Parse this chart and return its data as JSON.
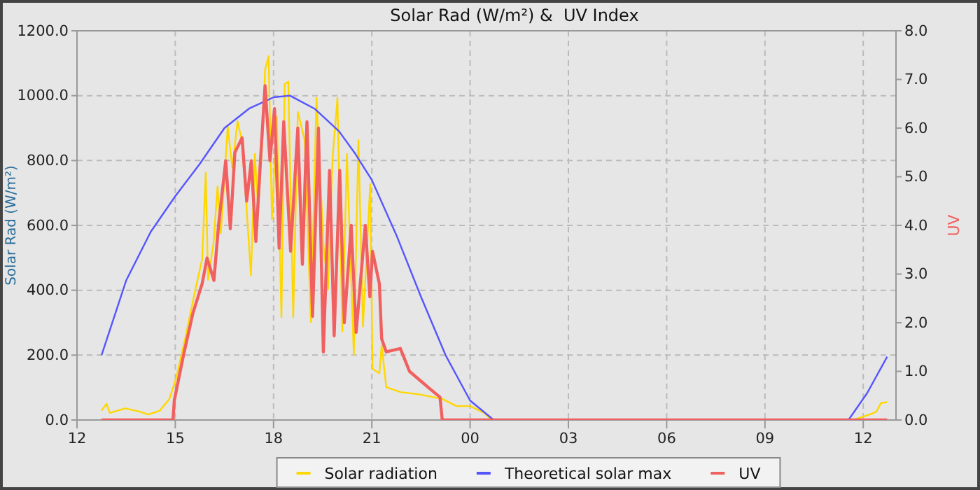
{
  "chart_data": {
    "type": "line",
    "title": "Solar Rad (W/m²) &  UV Index",
    "ylabel": "Solar Rad (W/m²)",
    "y2label": "UV",
    "xlim": [
      12,
      37
    ],
    "xticks": [
      {
        "value": 12,
        "label": "12"
      },
      {
        "value": 15,
        "label": "15"
      },
      {
        "value": 18,
        "label": "18"
      },
      {
        "value": 21,
        "label": "21"
      },
      {
        "value": 24,
        "label": "00"
      },
      {
        "value": 27,
        "label": "03"
      },
      {
        "value": 30,
        "label": "06"
      },
      {
        "value": 33,
        "label": "09"
      },
      {
        "value": 36,
        "label": "12"
      }
    ],
    "ylim": [
      0,
      1200
    ],
    "yticks": [
      {
        "value": 0,
        "label": "0.0"
      },
      {
        "value": 200,
        "label": "200.0"
      },
      {
        "value": 400,
        "label": "400.0"
      },
      {
        "value": 600,
        "label": "600.0"
      },
      {
        "value": 800,
        "label": "800.0"
      },
      {
        "value": 1000,
        "label": "1000.0"
      },
      {
        "value": 1200,
        "label": "1200.0"
      }
    ],
    "y2lim": [
      0,
      8
    ],
    "y2ticks": [
      {
        "value": 0,
        "label": "0.0"
      },
      {
        "value": 1,
        "label": "1.0"
      },
      {
        "value": 2,
        "label": "2.0"
      },
      {
        "value": 3,
        "label": "3.0"
      },
      {
        "value": 4,
        "label": "4.0"
      },
      {
        "value": 5,
        "label": "5.0"
      },
      {
        "value": 6,
        "label": "6.0"
      },
      {
        "value": 7,
        "label": "7.0"
      },
      {
        "value": 8,
        "label": "8.0"
      }
    ],
    "grid": true,
    "legend": "bottom",
    "marker": "none",
    "line_style": "solid",
    "series": [
      {
        "name": "Solar radiation",
        "color": "#ffd700",
        "x": [
          12.75,
          12.9,
          13.0,
          13.47,
          13.9,
          14.18,
          14.53,
          14.82,
          15.03,
          15.32,
          15.6,
          15.82,
          15.93,
          16.0,
          16.17,
          16.29,
          16.39,
          16.53,
          16.6,
          16.74,
          16.9,
          17.03,
          17.17,
          17.31,
          17.43,
          17.53,
          17.67,
          17.74,
          17.85,
          17.95,
          18.1,
          18.24,
          18.34,
          18.45,
          18.6,
          18.74,
          18.95,
          19.14,
          19.31,
          19.52,
          19.66,
          19.8,
          19.95,
          20.1,
          20.24,
          20.45,
          20.59,
          20.73,
          20.95,
          21.02,
          21.23,
          21.3,
          21.44,
          21.87,
          22.44,
          23.15,
          23.58,
          24.0,
          24.43,
          24.58,
          24.7,
          35.69,
          36.26,
          36.4,
          36.54,
          36.73
        ],
        "values": [
          29,
          50,
          22,
          36,
          26,
          17,
          29,
          65,
          130,
          259,
          396,
          496,
          763,
          432,
          547,
          720,
          576,
          791,
          906,
          777,
          921,
          863,
          662,
          446,
          820,
          647,
          878,
          1079,
          1122,
          619,
          935,
          317,
          1036,
          1043,
          317,
          950,
          863,
          302,
          993,
          547,
          403,
          806,
          993,
          273,
          820,
          201,
          863,
          288,
          727,
          158,
          144,
          230,
          101,
          86,
          79,
          65,
          43,
          43,
          22,
          7,
          0,
          0,
          19,
          26,
          52,
          55
        ]
      },
      {
        "name": "Theoretical solar max",
        "color": "#5555ff",
        "x": [
          12.75,
          13.5,
          14.25,
          15,
          15.75,
          16.5,
          17.25,
          18,
          18.5,
          19.25,
          20,
          20.5,
          21,
          21.75,
          22.5,
          23.25,
          24,
          24.72,
          35.55,
          36.12,
          36.73
        ],
        "values": [
          200,
          430,
          580,
          690,
          790,
          900,
          960,
          995,
          1000,
          960,
          890,
          820,
          740,
          570,
          380,
          200,
          60,
          0,
          0,
          83,
          195
        ]
      },
      {
        "name": "UV",
        "color": "#f06060",
        "axis": "y2",
        "x": [
          12.75,
          14.93,
          14.97,
          15.25,
          15.54,
          15.82,
          15.97,
          16.18,
          16.32,
          16.54,
          16.68,
          16.82,
          17.04,
          17.18,
          17.32,
          17.46,
          17.6,
          17.74,
          17.89,
          18.03,
          18.17,
          18.31,
          18.52,
          18.74,
          18.88,
          19.02,
          19.19,
          19.37,
          19.52,
          19.71,
          19.85,
          20.02,
          20.16,
          20.37,
          20.52,
          20.8,
          20.94,
          21.02,
          21.23,
          21.3,
          21.44,
          21.87,
          22.15,
          22.72,
          23.08,
          23.15,
          36.73
        ],
        "values": [
          0,
          0,
          0.4,
          1.33,
          2.2,
          2.8,
          3.33,
          2.87,
          4.0,
          5.33,
          3.93,
          5.5,
          5.8,
          4.5,
          5.33,
          3.67,
          5.33,
          6.87,
          5.33,
          6.4,
          3.53,
          6.13,
          3.47,
          6.0,
          3.2,
          6.13,
          2.13,
          6.0,
          1.4,
          5.13,
          1.73,
          5.13,
          2.0,
          4.0,
          1.8,
          4.0,
          2.53,
          3.47,
          2.8,
          1.67,
          1.4,
          1.47,
          1.0,
          0.67,
          0.47,
          0,
          0
        ]
      }
    ]
  }
}
